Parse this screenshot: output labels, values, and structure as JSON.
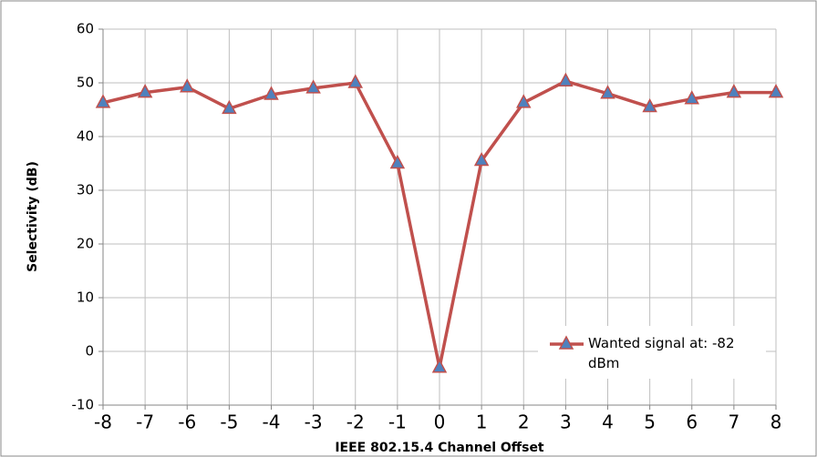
{
  "chart_data": {
    "type": "line",
    "x_label": "IEEE 802.15.4 Channel Offset",
    "y_label": "Selectivity (dB)",
    "x": [
      -8,
      -7,
      -6,
      -5,
      -4,
      -3,
      -2,
      -1,
      0,
      1,
      2,
      3,
      4,
      5,
      6,
      7,
      8
    ],
    "series": [
      {
        "name": "Wanted signal at: -82 dBm",
        "color": "#c0504d",
        "marker_color": "#4f81bd",
        "values": [
          46.3,
          48.2,
          49.2,
          45.2,
          47.8,
          49,
          50,
          35,
          -3,
          35.5,
          46.3,
          50.3,
          48,
          45.5,
          47,
          48.2,
          48.2
        ]
      }
    ],
    "xlim": [
      -8,
      8
    ],
    "xticks": [
      -8,
      -7,
      -6,
      -5,
      -4,
      -3,
      -2,
      -1,
      0,
      1,
      2,
      3,
      4,
      5,
      6,
      7,
      8
    ],
    "ylim": [
      -10,
      60
    ],
    "yticks": [
      -10,
      0,
      10,
      20,
      30,
      40,
      50,
      60
    ],
    "grid": true,
    "legend": "lower right"
  }
}
